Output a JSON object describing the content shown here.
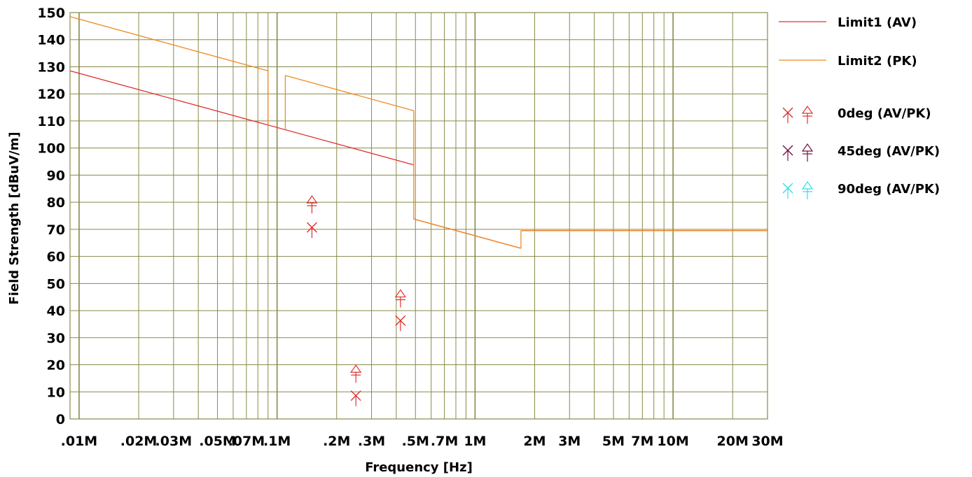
{
  "chart_data": {
    "type": "line",
    "xscale": "log",
    "xlabel": "Frequency [Hz]",
    "ylabel": "Field Strength [dBuV/m]",
    "xlim": [
      "0.009M",
      "30M"
    ],
    "ylim": [
      0,
      150
    ],
    "grid": true,
    "legend_position": "right",
    "x_tick_labels": [
      {
        "label": ".01M",
        "value": 0.01
      },
      {
        "label": ".02M",
        "value": 0.02
      },
      {
        "label": ".03M",
        "value": 0.03
      },
      {
        "label": ".05M",
        "value": 0.05
      },
      {
        "label": ".07M",
        "value": 0.07
      },
      {
        "label": ".1M",
        "value": 0.1
      },
      {
        "label": ".2M",
        "value": 0.2
      },
      {
        "label": ".3M",
        "value": 0.3
      },
      {
        "label": ".5M",
        "value": 0.5
      },
      {
        "label": ".7M",
        "value": 0.7
      },
      {
        "label": "1M",
        "value": 1
      },
      {
        "label": "2M",
        "value": 2
      },
      {
        "label": "3M",
        "value": 3
      },
      {
        "label": "5M",
        "value": 5
      },
      {
        "label": "7M",
        "value": 7
      },
      {
        "label": "10M",
        "value": 10
      },
      {
        "label": "20M",
        "value": 20
      },
      {
        "label": "30M",
        "value": 30
      }
    ],
    "y_ticks": [
      0,
      10,
      20,
      30,
      40,
      50,
      60,
      70,
      80,
      90,
      100,
      110,
      120,
      130,
      140,
      150
    ],
    "limit_lines": [
      {
        "name": "Limit1 (AV)",
        "color": "#e03030",
        "segments": [
          [
            [
              0.009,
              128.5
            ],
            [
              0.49,
              93.8
            ]
          ],
          [
            [
              0.49,
              73.8
            ],
            [
              1.705,
              63.0
            ]
          ],
          [
            [
              1.705,
              69.5
            ],
            [
              30,
              69.5
            ]
          ]
        ]
      },
      {
        "name": "Limit2 (PK)",
        "color": "#f08a20",
        "segments": [
          [
            [
              0.009,
              148.5
            ],
            [
              0.09,
              128.5
            ]
          ],
          [
            [
              0.09,
              128.5
            ],
            [
              0.09,
              108.5
            ]
          ],
          [
            [
              0.11,
              107.0
            ],
            [
              0.11,
              126.8
            ]
          ],
          [
            [
              0.11,
              126.8
            ],
            [
              0.49,
              113.8
            ]
          ],
          [
            [
              0.49,
              113.8
            ],
            [
              0.49,
              73.8
            ]
          ],
          [
            [
              0.49,
              73.8
            ],
            [
              1.705,
              63.0
            ]
          ],
          [
            [
              1.705,
              63.0
            ],
            [
              1.705,
              69.5
            ]
          ],
          [
            [
              1.705,
              69.5
            ],
            [
              30,
              69.5
            ]
          ]
        ]
      }
    ],
    "series": [
      {
        "name": "0deg (AV/PK)",
        "color": "#e03030",
        "points": [
          {
            "x": 0.15,
            "av": 70.7,
            "pk": 80.0
          },
          {
            "x": 0.25,
            "av": 8.6,
            "pk": 17.5
          },
          {
            "x": 0.42,
            "av": 36.3,
            "pk": 45.3
          }
        ]
      },
      {
        "name": "45deg (AV/PK)",
        "color": "#7a1040",
        "points": []
      },
      {
        "name": "90deg (AV/PK)",
        "color": "#30e0e8",
        "points": []
      }
    ]
  }
}
